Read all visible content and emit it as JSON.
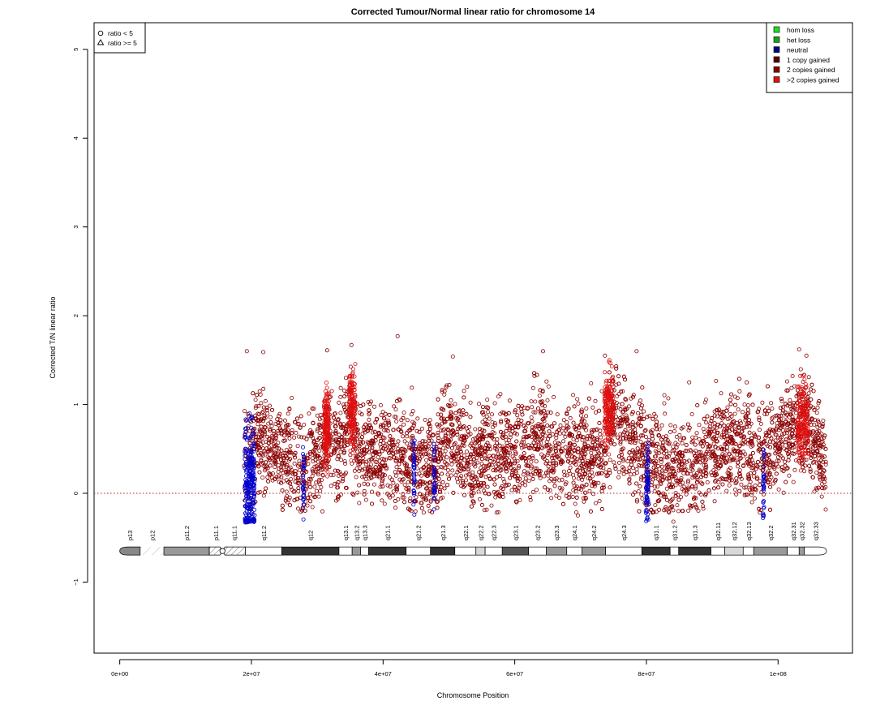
{
  "chart_data": {
    "type": "scatter",
    "title": "Corrected Tumour/Normal linear ratio for chromosome  14",
    "xlabel": "Chromosome Position",
    "ylabel": "Corrected T/N linear ratio",
    "xlim": [
      -3900000,
      111300000
    ],
    "ylim": [
      -1.8,
      5.3
    ],
    "x_ticks": [
      {
        "value": 0,
        "label": "0e+00"
      },
      {
        "value": 20000000,
        "label": "2e+07"
      },
      {
        "value": 40000000,
        "label": "4e+07"
      },
      {
        "value": 60000000,
        "label": "6e+07"
      },
      {
        "value": 80000000,
        "label": "8e+07"
      },
      {
        "value": 100000000,
        "label": "1e+08"
      }
    ],
    "y_ticks": [
      {
        "value": -1,
        "label": "−1"
      },
      {
        "value": 0,
        "label": "0"
      },
      {
        "value": 1,
        "label": "1"
      },
      {
        "value": 2,
        "label": "2"
      },
      {
        "value": 3,
        "label": "3"
      },
      {
        "value": 4,
        "label": "4"
      },
      {
        "value": 5,
        "label": "5"
      }
    ],
    "reference_line": {
      "y": 0,
      "style": "dotted",
      "color": "#b22222"
    },
    "shape_legend": {
      "placement": "top-left",
      "entries": [
        {
          "symbol": "circle",
          "label": "ratio < 5"
        },
        {
          "symbol": "triangle",
          "label": "ratio >= 5"
        }
      ]
    },
    "color_legend": {
      "placement": "top-right",
      "entries": [
        {
          "label": "hom loss",
          "color": "#22dd22"
        },
        {
          "label": "het loss",
          "color": "#18a418"
        },
        {
          "label": "neutral",
          "color": "#00008b"
        },
        {
          "label": "1 copy gained",
          "color": "#5a0000"
        },
        {
          "label": "2 copies gained",
          "color": "#8b0000"
        },
        {
          "label": ">2 copies gained",
          "color": "#e01010"
        }
      ]
    },
    "ideogram": {
      "y": -0.65,
      "bands": [
        {
          "name": "p13",
          "start": 0,
          "end": 3100000,
          "stain": "gvar"
        },
        {
          "name": "p12",
          "start": 3100000,
          "end": 6700000,
          "stain": "stalk"
        },
        {
          "name": "p11.2",
          "start": 6700000,
          "end": 13600000,
          "stain": "gpos50"
        },
        {
          "name": "p11.1",
          "start": 13600000,
          "end": 15600000,
          "stain": "acen"
        },
        {
          "name": "q11.1",
          "start": 15600000,
          "end": 19100000,
          "stain": "acen"
        },
        {
          "name": "q11.2",
          "start": 19100000,
          "end": 24600000,
          "stain": "gneg"
        },
        {
          "name": "q12",
          "start": 24600000,
          "end": 33300000,
          "stain": "gpos100"
        },
        {
          "name": "q13.1",
          "start": 33300000,
          "end": 35300000,
          "stain": "gneg"
        },
        {
          "name": "q13.2",
          "start": 35300000,
          "end": 36600000,
          "stain": "gpos50"
        },
        {
          "name": "q13.3",
          "start": 36600000,
          "end": 37800000,
          "stain": "gneg"
        },
        {
          "name": "q21.1",
          "start": 37800000,
          "end": 43500000,
          "stain": "gpos100"
        },
        {
          "name": "q21.2",
          "start": 43500000,
          "end": 47200000,
          "stain": "gneg"
        },
        {
          "name": "q21.3",
          "start": 47200000,
          "end": 50900000,
          "stain": "gpos100"
        },
        {
          "name": "q22.1",
          "start": 50900000,
          "end": 54100000,
          "stain": "gneg"
        },
        {
          "name": "q22.2",
          "start": 54100000,
          "end": 55500000,
          "stain": "gpos25"
        },
        {
          "name": "q22.3",
          "start": 55500000,
          "end": 58100000,
          "stain": "gneg"
        },
        {
          "name": "q23.1",
          "start": 58100000,
          "end": 62100000,
          "stain": "gpos75"
        },
        {
          "name": "q23.2",
          "start": 62100000,
          "end": 64800000,
          "stain": "gneg"
        },
        {
          "name": "q23.3",
          "start": 64800000,
          "end": 67900000,
          "stain": "gpos50"
        },
        {
          "name": "q24.1",
          "start": 67900000,
          "end": 70200000,
          "stain": "gneg"
        },
        {
          "name": "q24.2",
          "start": 70200000,
          "end": 73800000,
          "stain": "gpos50"
        },
        {
          "name": "q24.3",
          "start": 73800000,
          "end": 79300000,
          "stain": "gneg"
        },
        {
          "name": "q31.1",
          "start": 79300000,
          "end": 83600000,
          "stain": "gpos100"
        },
        {
          "name": "q31.2",
          "start": 83600000,
          "end": 84900000,
          "stain": "gneg"
        },
        {
          "name": "q31.3",
          "start": 84900000,
          "end": 89800000,
          "stain": "gpos100"
        },
        {
          "name": "q32.11",
          "start": 89800000,
          "end": 91900000,
          "stain": "gneg"
        },
        {
          "name": "q32.12",
          "start": 91900000,
          "end": 94700000,
          "stain": "gpos25"
        },
        {
          "name": "q32.13",
          "start": 94700000,
          "end": 96300000,
          "stain": "gneg"
        },
        {
          "name": "q32.2",
          "start": 96300000,
          "end": 101400000,
          "stain": "gpos50"
        },
        {
          "name": "q32.31",
          "start": 101400000,
          "end": 103200000,
          "stain": "gneg"
        },
        {
          "name": "q32.32",
          "start": 103200000,
          "end": 104000000,
          "stain": "gpos50"
        },
        {
          "name": "q32.33",
          "start": 104000000,
          "end": 107349540,
          "stain": "gneg"
        }
      ]
    },
    "series": [
      {
        "name": "1 copy gained",
        "color": "#8b0000",
        "x_range": [
          18900000,
          107300000
        ],
        "y_profile": [
          [
            19000000,
            0.45
          ],
          [
            21000000,
            0.6
          ],
          [
            23000000,
            0.55
          ],
          [
            25000000,
            0.4
          ],
          [
            28000000,
            0.3
          ],
          [
            30000000,
            0.45
          ],
          [
            32000000,
            0.6
          ],
          [
            33500000,
            0.45
          ],
          [
            35000000,
            0.85
          ],
          [
            36500000,
            0.45
          ],
          [
            40000000,
            0.45
          ],
          [
            43000000,
            0.4
          ],
          [
            45000000,
            0.35
          ],
          [
            47500000,
            0.3
          ],
          [
            50000000,
            0.7
          ],
          [
            53000000,
            0.4
          ],
          [
            56000000,
            0.45
          ],
          [
            60000000,
            0.45
          ],
          [
            64000000,
            0.6
          ],
          [
            66000000,
            0.45
          ],
          [
            70000000,
            0.45
          ],
          [
            73500000,
            0.5
          ],
          [
            74500000,
            0.9
          ],
          [
            76000000,
            0.8
          ],
          [
            78000000,
            0.6
          ],
          [
            80000000,
            0.3
          ],
          [
            83000000,
            0.3
          ],
          [
            85000000,
            0.25
          ],
          [
            88000000,
            0.35
          ],
          [
            91000000,
            0.55
          ],
          [
            94000000,
            0.6
          ],
          [
            97000000,
            0.45
          ],
          [
            100000000,
            0.55
          ],
          [
            102500000,
            0.75
          ],
          [
            104500000,
            0.8
          ],
          [
            106500000,
            0.5
          ],
          [
            107300000,
            0.35
          ]
        ],
        "spread": 0.28,
        "outliers": [
          {
            "x": 19300000,
            "y": 1.6
          },
          {
            "x": 21800000,
            "y": 1.59
          },
          {
            "x": 31500000,
            "y": 1.61
          },
          {
            "x": 35200000,
            "y": 1.67
          },
          {
            "x": 42200000,
            "y": 1.77
          },
          {
            "x": 50600000,
            "y": 1.54
          },
          {
            "x": 64300000,
            "y": 1.6
          },
          {
            "x": 73700000,
            "y": 1.55
          },
          {
            "x": 78500000,
            "y": 1.6
          },
          {
            "x": 103200000,
            "y": 1.62
          },
          {
            "x": 104300000,
            "y": 1.55
          },
          {
            "x": 86500000,
            "y": 1.25
          },
          {
            "x": 84100000,
            "y": -0.32
          },
          {
            "x": 69600000,
            "y": -0.25
          }
        ]
      },
      {
        "name": ">2 copies gained",
        "color": "#e01010",
        "segments": [
          {
            "x_range": [
              31000000,
              31800000
            ],
            "y_center": 0.75
          },
          {
            "x_range": [
              34800000,
              35800000
            ],
            "y_center": 0.95
          },
          {
            "x_range": [
              73600000,
              75000000
            ],
            "y_center": 0.95
          },
          {
            "x_range": [
              102900000,
              104700000
            ],
            "y_center": 0.8
          }
        ]
      },
      {
        "name": "neutral",
        "color": "#0000cd",
        "segments": [
          {
            "x_range": [
              19000000,
              20500000
            ],
            "y_center": 0.1,
            "spread": 0.32
          },
          {
            "x_range": [
              27800000,
              28000000
            ],
            "y_center": 0.15,
            "spread": 0.2
          },
          {
            "x_range": [
              44600000,
              44800000
            ],
            "y_center": 0.2,
            "spread": 0.2
          },
          {
            "x_range": [
              47700000,
              47900000
            ],
            "y_center": 0.2,
            "spread": 0.2
          },
          {
            "x_range": [
              79900000,
              80300000
            ],
            "y_center": 0.1,
            "spread": 0.22
          },
          {
            "x_range": [
              97700000,
              97900000
            ],
            "y_center": 0.15,
            "spread": 0.2
          }
        ]
      }
    ]
  }
}
